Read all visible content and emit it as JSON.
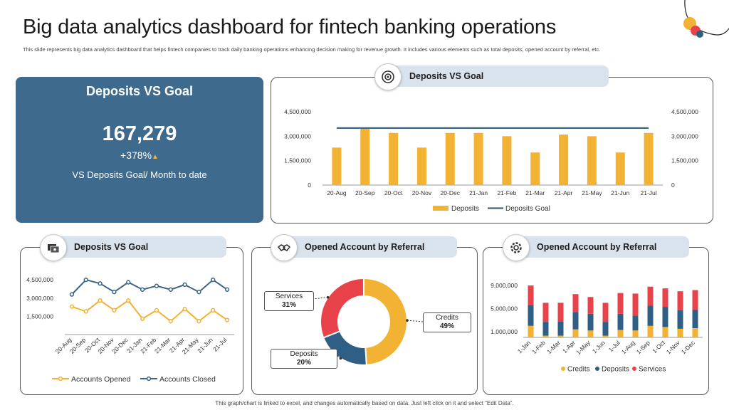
{
  "page": {
    "title": "Big data analytics dashboard for fintech banking operations",
    "subtitle": "This slide represents big data analytics dashboard that helps fintech companies to track daily banking operations enhancing decision making  for revenue growth. It includes various elements such as total deposits, opened account by referral, etc.",
    "footer": "This graph/chart is linked to excel, and changes automatically based on data. Just left click on it and select “Edit Data”."
  },
  "colors": {
    "kpi_bg": "#3e6a8e",
    "gold": "#f2b233",
    "navy": "#3d6584",
    "red": "#e8434b",
    "blue": "#2f5f85",
    "tab": "#d9e3ed"
  },
  "kpi": {
    "title": "Deposits VS Goal",
    "value": "167,279",
    "change": "+378%",
    "change_icon": "triangle-up-icon",
    "description": "VS Deposits Goal/ Month to date"
  },
  "panels": {
    "p1": {
      "title": "Deposits VS Goal",
      "icon": "target-icon"
    },
    "p2": {
      "title": "Deposits VS Goal",
      "icon": "money-cash-icon"
    },
    "p3": {
      "title": "Opened Account by Referral",
      "icon": "handshake-icon"
    },
    "p4": {
      "title": "Opened Account by Referral",
      "icon": "gear-icon"
    }
  },
  "chart_data": [
    {
      "type": "bar",
      "categories": [
        "20-Aug",
        "20-Sep",
        "20-Oct",
        "20-Nov",
        "20-Dec",
        "21-Jan",
        "21-Feb",
        "21-Mar",
        "21-Apr",
        "21-May",
        "21-Jun",
        "21-Jul"
      ],
      "series": [
        {
          "name": "Deposits",
          "type": "bar",
          "values": [
            2300000,
            3500000,
            3200000,
            2300000,
            3200000,
            3200000,
            3000000,
            2000000,
            3100000,
            3000000,
            2000000,
            3200000
          ]
        },
        {
          "name": "Deposits Goal",
          "type": "line",
          "values": [
            3500000,
            3500000,
            3500000,
            3500000,
            3500000,
            3500000,
            3500000,
            3500000,
            3500000,
            3500000,
            3500000,
            3500000
          ]
        }
      ],
      "yticks": [
        "0",
        "1,500,000",
        "3,000,000",
        "4,500,000"
      ],
      "y2ticks": [
        "0",
        "1,500,000",
        "3,000,000",
        "4,500,000"
      ],
      "ylim": [
        0,
        4500000
      ],
      "legend": "bottom"
    },
    {
      "type": "line",
      "categories": [
        "20-Aug",
        "20-Sep",
        "20-Oct",
        "20-Nov",
        "20-Dec",
        "21-Jan",
        "21-Feb",
        "21-Mar",
        "21-Apr",
        "21-May",
        "21-Jun",
        "21-Jul"
      ],
      "series": [
        {
          "name": "Accounts Opened",
          "values": [
            2300000,
            1900000,
            2800000,
            2000000,
            2800000,
            1300000,
            2000000,
            1100000,
            2100000,
            1100000,
            2000000,
            1200000
          ]
        },
        {
          "name": "Accounts Closed",
          "values": [
            3300000,
            4500000,
            4200000,
            3500000,
            4300000,
            3700000,
            4000000,
            3700000,
            4100000,
            3500000,
            4500000,
            3700000
          ]
        }
      ],
      "yticks": [
        "0",
        "1,500,000",
        "3,000,000",
        "4,500,000"
      ],
      "ylim": [
        0,
        4800000
      ],
      "legend": "bottom"
    },
    {
      "type": "pie",
      "variant": "donut",
      "slices": [
        {
          "label": "Credits",
          "value": 49,
          "pct": "49%",
          "color": "#f2b233"
        },
        {
          "label": "Deposits",
          "value": 20,
          "pct": "20%",
          "color": "#2f5f85"
        },
        {
          "label": "Services",
          "value": 31,
          "pct": "31%",
          "color": "#e8434b"
        }
      ]
    },
    {
      "type": "bar",
      "stacked": true,
      "categories": [
        "1-Jan",
        "1-Feb",
        "1-Mar",
        "1-Apr",
        "1-May",
        "1-Jun",
        "1-Jul",
        "1-Aug",
        "1-Sep",
        "1-Oct",
        "1-Nov",
        "1-Dec"
      ],
      "series": [
        {
          "name": "Credits",
          "values": [
            2000000,
            300000,
            300000,
            1400000,
            1200000,
            300000,
            1300000,
            1200000,
            2000000,
            1800000,
            1500000,
            1600000
          ]
        },
        {
          "name": "Deposits",
          "values": [
            3600000,
            2400000,
            2500000,
            3000000,
            2900000,
            2400000,
            2800000,
            2600000,
            3500000,
            3500000,
            3200000,
            3200000
          ]
        },
        {
          "name": "Services",
          "values": [
            3400000,
            3300000,
            3200000,
            3100000,
            2900000,
            3300000,
            3600000,
            3800000,
            3300000,
            3200000,
            3300000,
            3400000
          ]
        }
      ],
      "yticks": [
        "1,000,000",
        "5,000,000",
        "9,000,000"
      ],
      "ylim": [
        0,
        10000000
      ],
      "legend": "bottom"
    }
  ]
}
